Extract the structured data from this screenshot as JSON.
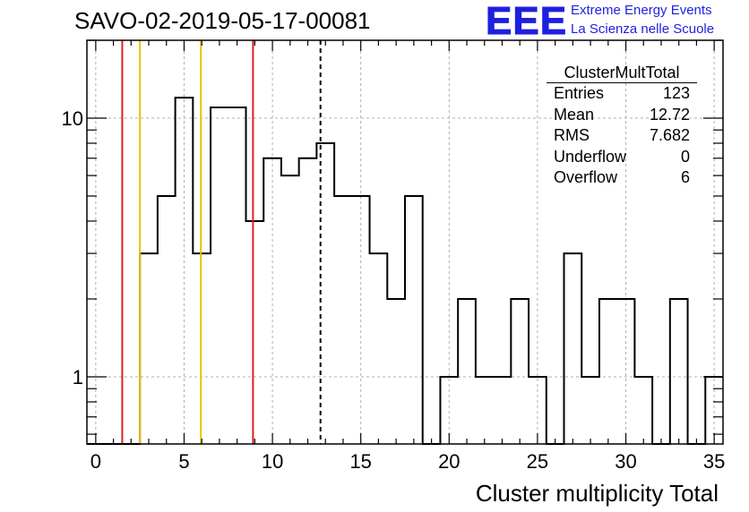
{
  "title": "SAVO-02-2019-05-17-00081",
  "logo": {
    "text": "EEE",
    "line1": "Extreme Energy Events",
    "line2": "La Scienza nelle Scuole",
    "color": "#1f1fe0"
  },
  "stats_box": {
    "header": "ClusterMultTotal",
    "rows": [
      {
        "label": "Entries",
        "value": "123"
      },
      {
        "label": "Mean",
        "value": "12.72"
      },
      {
        "label": "RMS",
        "value": "7.682"
      },
      {
        "label": "Underflow",
        "value": "0"
      },
      {
        "label": "Overflow",
        "value": "6"
      }
    ]
  },
  "chart_data": {
    "type": "bar",
    "style": "step-histogram",
    "xlabel": "Cluster multiplicity Total",
    "ylabel": "",
    "xlim": [
      -0.5,
      35.5
    ],
    "ylim": [
      0.55,
      20
    ],
    "yscale": "log",
    "grid": true,
    "x_ticks": [
      "0",
      "5",
      "10",
      "15",
      "20",
      "25",
      "30",
      "35"
    ],
    "y_ticks": [
      "1",
      "10"
    ],
    "bin_width": 1,
    "bin_start": -0.5,
    "values": [
      0,
      0,
      0,
      3,
      5,
      12,
      3,
      11,
      11,
      4,
      7,
      6,
      7,
      8,
      5,
      5,
      3,
      2,
      5,
      0,
      1,
      2,
      1,
      1,
      2,
      1,
      0,
      3,
      1,
      2,
      2,
      1,
      0,
      2,
      0,
      1
    ],
    "vertical_lines": [
      {
        "x": 1.5,
        "color": "#e02020",
        "style": "solid"
      },
      {
        "x": 2.5,
        "color": "#f0c000",
        "style": "solid"
      },
      {
        "x": 5.95,
        "color": "#f0c000",
        "style": "solid"
      },
      {
        "x": 8.9,
        "color": "#e02020",
        "style": "solid"
      },
      {
        "x": 12.72,
        "color": "#000000",
        "style": "dashed"
      }
    ]
  }
}
